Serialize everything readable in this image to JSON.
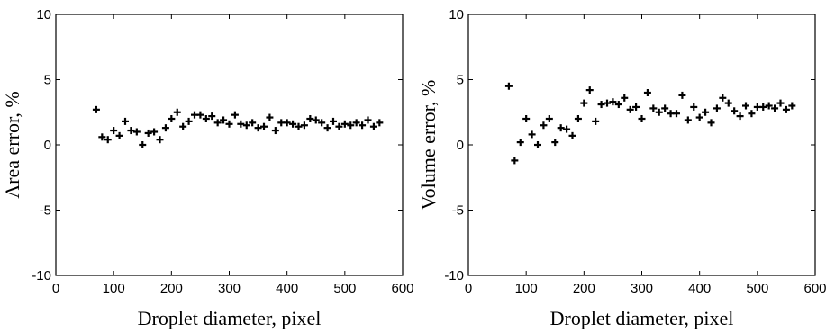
{
  "chart_data": [
    {
      "type": "scatter",
      "xlabel": "Droplet diameter, pixel",
      "ylabel": "Area error, %",
      "xlim": [
        0,
        600
      ],
      "ylim": [
        -10,
        10
      ],
      "xticks": [
        0,
        100,
        200,
        300,
        400,
        500,
        600
      ],
      "yticks": [
        -10,
        -5,
        0,
        5,
        10
      ],
      "x": [
        70,
        80,
        90,
        100,
        110,
        120,
        130,
        140,
        150,
        160,
        170,
        180,
        190,
        200,
        210,
        220,
        230,
        240,
        250,
        260,
        270,
        280,
        290,
        300,
        310,
        320,
        330,
        340,
        350,
        360,
        370,
        380,
        390,
        400,
        410,
        420,
        430,
        440,
        450,
        460,
        470,
        480,
        490,
        500,
        510,
        520,
        530,
        540,
        550,
        560
      ],
      "y": [
        2.7,
        0.6,
        0.4,
        1.1,
        0.7,
        1.8,
        1.1,
        1.0,
        0.0,
        0.9,
        1.0,
        0.4,
        1.3,
        2.0,
        2.5,
        1.4,
        1.8,
        2.3,
        2.3,
        2.0,
        2.2,
        1.7,
        1.9,
        1.6,
        2.3,
        1.6,
        1.5,
        1.7,
        1.3,
        1.4,
        2.1,
        1.1,
        1.7,
        1.7,
        1.6,
        1.4,
        1.5,
        2.0,
        1.9,
        1.7,
        1.3,
        1.8,
        1.4,
        1.6,
        1.5,
        1.7,
        1.5,
        1.9,
        1.4,
        1.7
      ]
    },
    {
      "type": "scatter",
      "xlabel": "Droplet diameter, pixel",
      "ylabel": "Volume error, %",
      "xlim": [
        0,
        600
      ],
      "ylim": [
        -10,
        10
      ],
      "xticks": [
        0,
        100,
        200,
        300,
        400,
        500,
        600
      ],
      "yticks": [
        -10,
        -5,
        0,
        5,
        10
      ],
      "x": [
        70,
        80,
        90,
        100,
        110,
        120,
        130,
        140,
        150,
        160,
        170,
        180,
        190,
        200,
        210,
        220,
        230,
        240,
        250,
        260,
        270,
        280,
        290,
        300,
        310,
        320,
        330,
        340,
        350,
        360,
        370,
        380,
        390,
        400,
        410,
        420,
        430,
        440,
        450,
        460,
        470,
        480,
        490,
        500,
        510,
        520,
        530,
        540,
        550,
        560
      ],
      "y": [
        4.5,
        -1.2,
        0.2,
        2.0,
        0.8,
        0.0,
        1.5,
        2.0,
        0.2,
        1.3,
        1.2,
        0.7,
        2.0,
        3.2,
        4.2,
        1.8,
        3.1,
        3.2,
        3.3,
        3.1,
        3.6,
        2.7,
        2.9,
        2.0,
        4.0,
        2.8,
        2.5,
        2.8,
        2.4,
        2.4,
        3.8,
        1.9,
        2.9,
        2.1,
        2.5,
        1.7,
        2.8,
        3.6,
        3.2,
        2.6,
        2.2,
        3.0,
        2.4,
        2.9,
        2.9,
        3.0,
        2.8,
        3.2,
        2.7,
        3.0
      ]
    }
  ]
}
